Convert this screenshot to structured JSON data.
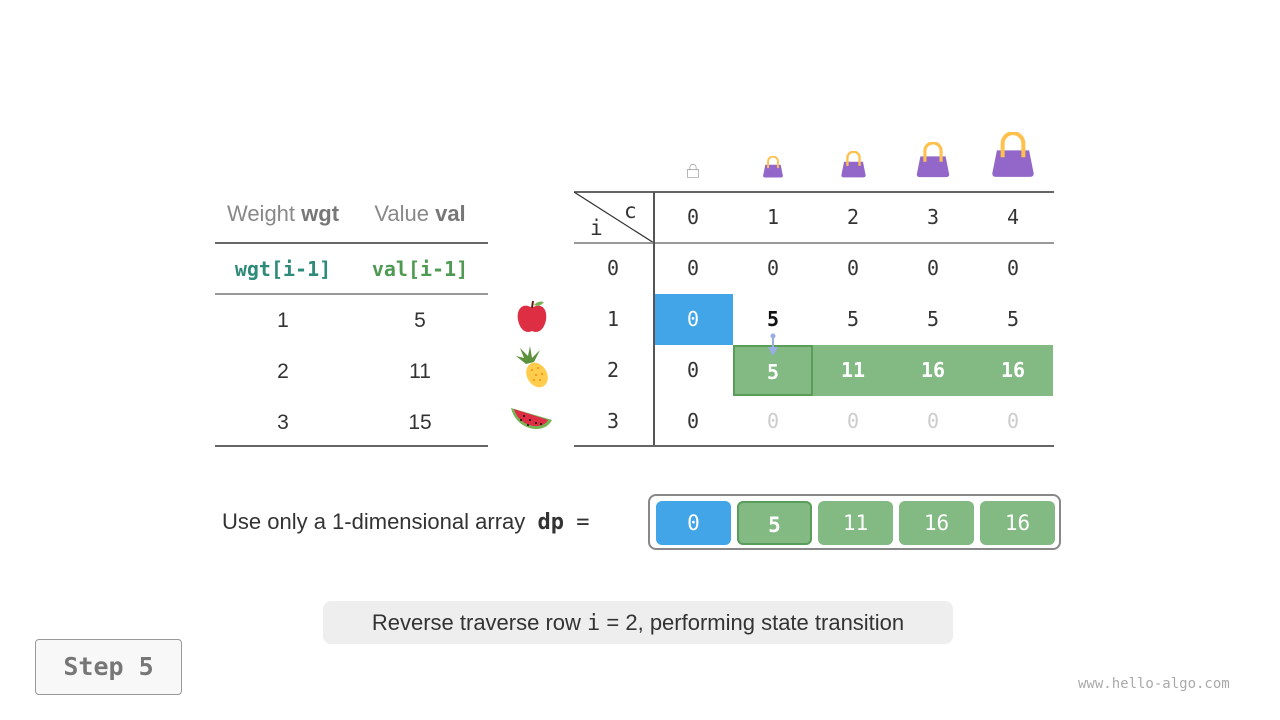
{
  "left_table": {
    "headers": [
      {
        "label": "Weight",
        "bold": "wgt"
      },
      {
        "label": "Value",
        "bold": "val"
      }
    ],
    "code_headers": [
      "wgt[i-1]",
      "val[i-1]"
    ],
    "rows": [
      [
        "1",
        "5"
      ],
      [
        "2",
        "11"
      ],
      [
        "3",
        "15"
      ]
    ],
    "item_icons": [
      "apple-icon",
      "pineapple-icon",
      "watermelon-icon"
    ]
  },
  "dp_table": {
    "corner_c": "c",
    "corner_i": "i",
    "col_headers": [
      "0",
      "1",
      "2",
      "3",
      "4"
    ],
    "row_headers": [
      "0",
      "1",
      "2",
      "3"
    ],
    "bag_icons": [
      "bag-empty-icon",
      "bag-icon",
      "bag-icon",
      "bag-icon",
      "bag-icon"
    ],
    "cells": [
      [
        {
          "v": "0",
          "s": ""
        },
        {
          "v": "0",
          "s": ""
        },
        {
          "v": "0",
          "s": ""
        },
        {
          "v": "0",
          "s": ""
        },
        {
          "v": "0",
          "s": ""
        }
      ],
      [
        {
          "v": "0",
          "s": "blue"
        },
        {
          "v": "5",
          "s": "bold"
        },
        {
          "v": "5",
          "s": ""
        },
        {
          "v": "5",
          "s": ""
        },
        {
          "v": "5",
          "s": ""
        }
      ],
      [
        {
          "v": "0",
          "s": ""
        },
        {
          "v": "5",
          "s": "cur"
        },
        {
          "v": "11",
          "s": "green"
        },
        {
          "v": "16",
          "s": "green"
        },
        {
          "v": "16",
          "s": "green"
        }
      ],
      [
        {
          "v": "0",
          "s": ""
        },
        {
          "v": "0",
          "s": "faded"
        },
        {
          "v": "0",
          "s": "faded"
        },
        {
          "v": "0",
          "s": "faded"
        },
        {
          "v": "0",
          "s": "faded"
        }
      ]
    ]
  },
  "array": {
    "label": "Use only a 1-dimensional array",
    "name": "dp",
    "equals": "=",
    "cells": [
      {
        "v": "0",
        "s": "blue"
      },
      {
        "v": "5",
        "s": "cur"
      },
      {
        "v": "11",
        "s": "green"
      },
      {
        "v": "16",
        "s": "green"
      },
      {
        "v": "16",
        "s": "green"
      }
    ]
  },
  "caption": {
    "before": "Reverse traverse row ",
    "code": "i",
    "after": " = 2, performing state transition"
  },
  "step_button": "Step 5",
  "watermark": "www.hello-algo.com",
  "colors": {
    "blue": "#42a5e8",
    "green": "#83b983",
    "teal": "#2e8b7a",
    "code_green": "#4e9a52",
    "bag": "#9366c9"
  }
}
